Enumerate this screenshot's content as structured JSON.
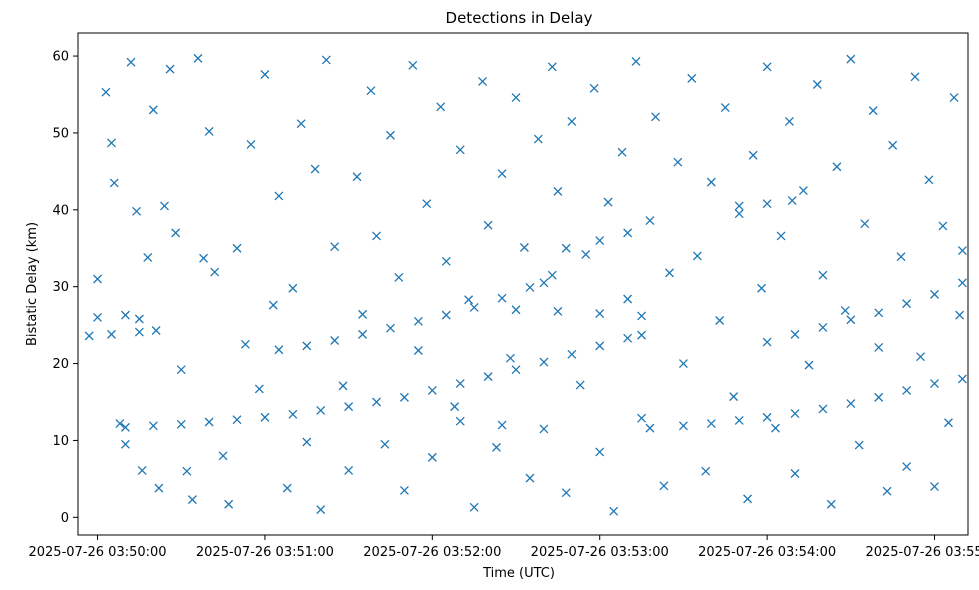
{
  "chart_data": {
    "type": "scatter",
    "title": "Detections in Delay",
    "xlabel": "Time (UTC)",
    "ylabel": "Bistatic Delay (km)",
    "x_unit": "time",
    "xlim": [
      "2025-07-26 03:49:53",
      "2025-07-26 03:55:12"
    ],
    "ylim": [
      -2.3,
      63.0
    ],
    "x_ticks": [
      "2025-07-26 03:50:00",
      "2025-07-26 03:51:00",
      "2025-07-26 03:52:00",
      "2025-07-26 03:53:00",
      "2025-07-26 03:54:00",
      "2025-07-26 03:55:00"
    ],
    "y_ticks": [
      0,
      10,
      20,
      30,
      40,
      50,
      60
    ],
    "marker": "x",
    "color": "#1f77b4",
    "grid": false,
    "legend": "none",
    "series": [
      {
        "name": "",
        "points": [
          [
            "2025-07-26 03:50:10",
            11.7
          ],
          [
            "2025-07-26 03:50:20",
            11.9
          ],
          [
            "2025-07-26 03:50:30",
            12.1
          ],
          [
            "2025-07-26 03:50:40",
            12.4
          ],
          [
            "2025-07-26 03:50:50",
            12.7
          ],
          [
            "2025-07-26 03:51:00",
            13.0
          ],
          [
            "2025-07-26 03:51:10",
            13.4
          ],
          [
            "2025-07-26 03:51:20",
            13.9
          ],
          [
            "2025-07-26 03:51:30",
            14.4
          ],
          [
            "2025-07-26 03:51:40",
            15.0
          ],
          [
            "2025-07-26 03:51:50",
            15.6
          ],
          [
            "2025-07-26 03:52:00",
            16.5
          ],
          [
            "2025-07-26 03:52:10",
            17.4
          ],
          [
            "2025-07-26 03:52:20",
            18.3
          ],
          [
            "2025-07-26 03:52:30",
            19.2
          ],
          [
            "2025-07-26 03:52:40",
            20.2
          ],
          [
            "2025-07-26 03:52:50",
            21.2
          ],
          [
            "2025-07-26 03:53:00",
            22.3
          ],
          [
            "2025-07-26 03:53:10",
            23.3
          ],
          [
            "2025-07-26 03:53:15",
            23.7
          ],
          [
            "2025-07-26 03:53:18",
            11.6
          ],
          [
            "2025-07-26 03:53:30",
            11.9
          ],
          [
            "2025-07-26 03:53:40",
            12.2
          ],
          [
            "2025-07-26 03:53:50",
            12.6
          ],
          [
            "2025-07-26 03:54:00",
            13.0
          ],
          [
            "2025-07-26 03:54:10",
            13.5
          ],
          [
            "2025-07-26 03:54:20",
            14.1
          ],
          [
            "2025-07-26 03:54:30",
            14.8
          ],
          [
            "2025-07-26 03:54:40",
            15.6
          ],
          [
            "2025-07-26 03:54:50",
            16.5
          ],
          [
            "2025-07-26 03:55:00",
            17.4
          ],
          [
            "2025-07-26 03:55:10",
            18.0
          ],
          [
            "2025-07-26 03:49:57",
            23.6
          ],
          [
            "2025-07-26 03:50:05",
            23.8
          ],
          [
            "2025-07-26 03:50:15",
            24.1
          ],
          [
            "2025-07-26 03:50:21",
            24.3
          ],
          [
            "2025-07-26 03:51:05",
            21.8
          ],
          [
            "2025-07-26 03:51:15",
            22.3
          ],
          [
            "2025-07-26 03:51:25",
            23.0
          ],
          [
            "2025-07-26 03:51:35",
            23.8
          ],
          [
            "2025-07-26 03:51:45",
            24.6
          ],
          [
            "2025-07-26 03:51:55",
            25.5
          ],
          [
            "2025-07-26 03:52:05",
            26.3
          ],
          [
            "2025-07-26 03:52:15",
            27.3
          ],
          [
            "2025-07-26 03:52:25",
            28.5
          ],
          [
            "2025-07-26 03:52:35",
            29.9
          ],
          [
            "2025-07-26 03:52:43",
            31.5
          ],
          [
            "2025-07-26 03:52:48",
            35.0
          ],
          [
            "2025-07-26 03:53:00",
            36.0
          ],
          [
            "2025-07-26 03:53:10",
            37.0
          ],
          [
            "2025-07-26 03:54:00",
            22.8
          ],
          [
            "2025-07-26 03:54:10",
            23.8
          ],
          [
            "2025-07-26 03:54:20",
            24.7
          ],
          [
            "2025-07-26 03:54:30",
            25.7
          ],
          [
            "2025-07-26 03:54:40",
            26.6
          ],
          [
            "2025-07-26 03:54:50",
            27.8
          ],
          [
            "2025-07-26 03:55:00",
            29.0
          ],
          [
            "2025-07-26 03:55:10",
            30.5
          ],
          [
            "2025-07-26 03:53:50",
            40.5
          ],
          [
            "2025-07-26 03:54:00",
            40.8
          ],
          [
            "2025-07-26 03:54:09",
            41.2
          ],
          [
            "2025-07-26 03:50:00",
            26.0
          ],
          [
            "2025-07-26 03:50:10",
            26.3
          ],
          [
            "2025-07-26 03:50:15",
            25.8
          ],
          [
            "2025-07-26 03:52:30",
            27.0
          ],
          [
            "2025-07-26 03:52:45",
            26.8
          ],
          [
            "2025-07-26 03:53:00",
            26.5
          ],
          [
            "2025-07-26 03:53:15",
            26.2
          ],
          [
            "2025-07-26 03:52:10",
            12.5
          ],
          [
            "2025-07-26 03:52:25",
            12.0
          ],
          [
            "2025-07-26 03:52:40",
            11.5
          ],
          [
            "2025-07-26 03:50:00",
            31.0
          ],
          [
            "2025-07-26 03:50:03",
            55.3
          ],
          [
            "2025-07-26 03:50:05",
            48.7
          ],
          [
            "2025-07-26 03:50:06",
            43.5
          ],
          [
            "2025-07-26 03:50:08",
            12.2
          ],
          [
            "2025-07-26 03:50:10",
            9.5
          ],
          [
            "2025-07-26 03:50:12",
            59.2
          ],
          [
            "2025-07-26 03:50:14",
            39.8
          ],
          [
            "2025-07-26 03:50:16",
            6.1
          ],
          [
            "2025-07-26 03:50:18",
            33.8
          ],
          [
            "2025-07-26 03:50:20",
            53.0
          ],
          [
            "2025-07-26 03:50:22",
            3.8
          ],
          [
            "2025-07-26 03:50:24",
            40.5
          ],
          [
            "2025-07-26 03:50:26",
            58.3
          ],
          [
            "2025-07-26 03:50:28",
            37.0
          ],
          [
            "2025-07-26 03:50:30",
            19.2
          ],
          [
            "2025-07-26 03:50:32",
            6.0
          ],
          [
            "2025-07-26 03:50:34",
            2.3
          ],
          [
            "2025-07-26 03:50:36",
            59.7
          ],
          [
            "2025-07-26 03:50:38",
            33.7
          ],
          [
            "2025-07-26 03:50:40",
            50.2
          ],
          [
            "2025-07-26 03:50:42",
            31.9
          ],
          [
            "2025-07-26 03:50:45",
            8.0
          ],
          [
            "2025-07-26 03:50:47",
            1.7
          ],
          [
            "2025-07-26 03:50:50",
            35.0
          ],
          [
            "2025-07-26 03:50:53",
            22.5
          ],
          [
            "2025-07-26 03:50:55",
            48.5
          ],
          [
            "2025-07-26 03:50:58",
            16.7
          ],
          [
            "2025-07-26 03:51:00",
            57.6
          ],
          [
            "2025-07-26 03:51:03",
            27.6
          ],
          [
            "2025-07-26 03:51:05",
            41.8
          ],
          [
            "2025-07-26 03:51:08",
            3.8
          ],
          [
            "2025-07-26 03:51:10",
            29.8
          ],
          [
            "2025-07-26 03:51:13",
            51.2
          ],
          [
            "2025-07-26 03:51:15",
            9.8
          ],
          [
            "2025-07-26 03:51:18",
            45.3
          ],
          [
            "2025-07-26 03:51:20",
            1.0
          ],
          [
            "2025-07-26 03:51:22",
            59.5
          ],
          [
            "2025-07-26 03:51:25",
            35.2
          ],
          [
            "2025-07-26 03:51:28",
            17.1
          ],
          [
            "2025-07-26 03:51:30",
            6.1
          ],
          [
            "2025-07-26 03:51:33",
            44.3
          ],
          [
            "2025-07-26 03:51:35",
            26.4
          ],
          [
            "2025-07-26 03:51:38",
            55.5
          ],
          [
            "2025-07-26 03:51:40",
            36.6
          ],
          [
            "2025-07-26 03:51:43",
            9.5
          ],
          [
            "2025-07-26 03:51:45",
            49.7
          ],
          [
            "2025-07-26 03:51:48",
            31.2
          ],
          [
            "2025-07-26 03:51:50",
            3.5
          ],
          [
            "2025-07-26 03:51:53",
            58.8
          ],
          [
            "2025-07-26 03:51:55",
            21.7
          ],
          [
            "2025-07-26 03:51:58",
            40.8
          ],
          [
            "2025-07-26 03:52:00",
            7.8
          ],
          [
            "2025-07-26 03:52:03",
            53.4
          ],
          [
            "2025-07-26 03:52:05",
            33.3
          ],
          [
            "2025-07-26 03:52:08",
            14.4
          ],
          [
            "2025-07-26 03:52:10",
            47.8
          ],
          [
            "2025-07-26 03:52:13",
            28.3
          ],
          [
            "2025-07-26 03:52:15",
            1.3
          ],
          [
            "2025-07-26 03:52:18",
            56.7
          ],
          [
            "2025-07-26 03:52:20",
            38.0
          ],
          [
            "2025-07-26 03:52:23",
            9.1
          ],
          [
            "2025-07-26 03:52:25",
            44.7
          ],
          [
            "2025-07-26 03:52:28",
            20.7
          ],
          [
            "2025-07-26 03:52:30",
            54.6
          ],
          [
            "2025-07-26 03:52:33",
            35.1
          ],
          [
            "2025-07-26 03:52:35",
            5.1
          ],
          [
            "2025-07-26 03:52:38",
            49.2
          ],
          [
            "2025-07-26 03:52:40",
            30.5
          ],
          [
            "2025-07-26 03:52:43",
            58.6
          ],
          [
            "2025-07-26 03:52:45",
            42.4
          ],
          [
            "2025-07-26 03:52:48",
            3.2
          ],
          [
            "2025-07-26 03:52:50",
            51.5
          ],
          [
            "2025-07-26 03:52:53",
            17.2
          ],
          [
            "2025-07-26 03:52:55",
            34.2
          ],
          [
            "2025-07-26 03:52:58",
            55.8
          ],
          [
            "2025-07-26 03:53:00",
            8.5
          ],
          [
            "2025-07-26 03:53:03",
            41.0
          ],
          [
            "2025-07-26 03:53:05",
            0.8
          ],
          [
            "2025-07-26 03:53:08",
            47.5
          ],
          [
            "2025-07-26 03:53:10",
            28.4
          ],
          [
            "2025-07-26 03:53:13",
            59.3
          ],
          [
            "2025-07-26 03:53:15",
            12.9
          ],
          [
            "2025-07-26 03:53:18",
            38.6
          ],
          [
            "2025-07-26 03:53:20",
            52.1
          ],
          [
            "2025-07-26 03:53:23",
            4.1
          ],
          [
            "2025-07-26 03:53:25",
            31.8
          ],
          [
            "2025-07-26 03:53:28",
            46.2
          ],
          [
            "2025-07-26 03:53:30",
            20.0
          ],
          [
            "2025-07-26 03:53:33",
            57.1
          ],
          [
            "2025-07-26 03:53:35",
            34.0
          ],
          [
            "2025-07-26 03:53:38",
            6.0
          ],
          [
            "2025-07-26 03:53:40",
            43.6
          ],
          [
            "2025-07-26 03:53:43",
            25.6
          ],
          [
            "2025-07-26 03:53:45",
            53.3
          ],
          [
            "2025-07-26 03:53:48",
            15.7
          ],
          [
            "2025-07-26 03:53:50",
            39.5
          ],
          [
            "2025-07-26 03:53:53",
            2.4
          ],
          [
            "2025-07-26 03:53:55",
            47.1
          ],
          [
            "2025-07-26 03:53:58",
            29.8
          ],
          [
            "2025-07-26 03:54:00",
            58.6
          ],
          [
            "2025-07-26 03:54:03",
            11.6
          ],
          [
            "2025-07-26 03:54:05",
            36.6
          ],
          [
            "2025-07-26 03:54:08",
            51.5
          ],
          [
            "2025-07-26 03:54:10",
            5.7
          ],
          [
            "2025-07-26 03:54:13",
            42.5
          ],
          [
            "2025-07-26 03:54:15",
            19.8
          ],
          [
            "2025-07-26 03:54:18",
            56.3
          ],
          [
            "2025-07-26 03:54:20",
            31.5
          ],
          [
            "2025-07-26 03:54:23",
            1.7
          ],
          [
            "2025-07-26 03:54:25",
            45.6
          ],
          [
            "2025-07-26 03:54:28",
            26.9
          ],
          [
            "2025-07-26 03:54:30",
            59.6
          ],
          [
            "2025-07-26 03:54:33",
            9.4
          ],
          [
            "2025-07-26 03:54:35",
            38.2
          ],
          [
            "2025-07-26 03:54:38",
            52.9
          ],
          [
            "2025-07-26 03:54:40",
            22.1
          ],
          [
            "2025-07-26 03:54:43",
            3.4
          ],
          [
            "2025-07-26 03:54:45",
            48.4
          ],
          [
            "2025-07-26 03:54:48",
            33.9
          ],
          [
            "2025-07-26 03:54:50",
            6.6
          ],
          [
            "2025-07-26 03:54:53",
            57.3
          ],
          [
            "2025-07-26 03:54:55",
            20.9
          ],
          [
            "2025-07-26 03:54:58",
            43.9
          ],
          [
            "2025-07-26 03:55:00",
            4.0
          ],
          [
            "2025-07-26 03:55:03",
            37.9
          ],
          [
            "2025-07-26 03:55:05",
            12.3
          ],
          [
            "2025-07-26 03:55:07",
            54.6
          ],
          [
            "2025-07-26 03:55:09",
            26.3
          ],
          [
            "2025-07-26 03:55:10",
            34.7
          ]
        ]
      }
    ]
  }
}
